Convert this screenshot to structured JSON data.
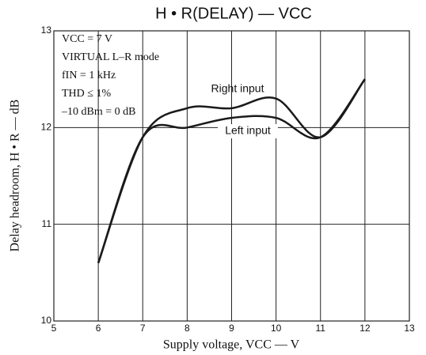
{
  "chart_data": {
    "type": "line",
    "title": "H • R(DELAY) — VCC",
    "x_label": "Supply voltage, VCC — V",
    "y_label": "Delay headroom, H • R — dB",
    "annotations": [
      "VCC = 7 V",
      "VIRTUAL  L–R mode",
      "fIN = 1 kHz",
      "THD ≤ 1%",
      "–10 dBm = 0 dB"
    ],
    "x": [
      6,
      7,
      8,
      9,
      10,
      11,
      12
    ],
    "series": [
      {
        "name": "Right input",
        "color": "#1a1a1a",
        "values": [
          10.6,
          11.9,
          12.2,
          12.2,
          12.3,
          11.9,
          12.5
        ]
      },
      {
        "name": "Left input",
        "color": "#1a1a1a",
        "values": [
          10.6,
          11.9,
          12.0,
          12.1,
          12.1,
          11.9,
          12.5
        ]
      }
    ],
    "xlim": [
      5,
      13
    ],
    "xticks": [
      5,
      6,
      7,
      8,
      9,
      10,
      11,
      12,
      13
    ],
    "ylim": [
      10,
      13
    ],
    "yticks": [
      10,
      11,
      12,
      13
    ],
    "grid": true
  }
}
